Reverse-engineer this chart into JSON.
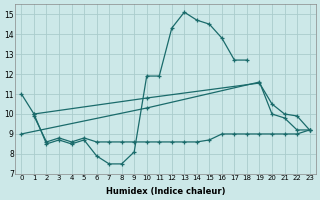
{
  "xlabel": "Humidex (Indice chaleur)",
  "bg_color": "#cce8e8",
  "grid_color": "#aacccc",
  "line_color": "#1a6b6b",
  "xlim": [
    -0.5,
    23.5
  ],
  "ylim": [
    7,
    15.5
  ],
  "xticks": [
    0,
    1,
    2,
    3,
    4,
    5,
    6,
    7,
    8,
    9,
    10,
    11,
    12,
    13,
    14,
    15,
    16,
    17,
    18,
    19,
    20,
    21,
    22,
    23
  ],
  "yticks": [
    7,
    8,
    9,
    10,
    11,
    12,
    13,
    14,
    15
  ],
  "s1_x": [
    0,
    1,
    2,
    3,
    4,
    5,
    6,
    7,
    8,
    9,
    10,
    11,
    12,
    13,
    14,
    15,
    16,
    17,
    18
  ],
  "s1_y": [
    11.0,
    10.0,
    8.5,
    8.7,
    8.5,
    8.7,
    7.9,
    7.5,
    7.5,
    8.1,
    11.9,
    11.9,
    14.3,
    15.1,
    14.7,
    14.5,
    13.8,
    12.7,
    12.7
  ],
  "s2_x": [
    0,
    10,
    19,
    20,
    21,
    22,
    23
  ],
  "s2_y": [
    9.0,
    10.3,
    11.6,
    10.0,
    9.8,
    9.2,
    9.2
  ],
  "s3_x": [
    1,
    10,
    19,
    20,
    21,
    22,
    23
  ],
  "s3_y": [
    10.0,
    10.8,
    11.55,
    10.5,
    10.0,
    9.9,
    9.2
  ],
  "s4_x": [
    1,
    2,
    3,
    4,
    5,
    6,
    7,
    8,
    9,
    10,
    11,
    12,
    13,
    14,
    15,
    16,
    17,
    18,
    19,
    20,
    21,
    22,
    23
  ],
  "s4_y": [
    9.9,
    8.6,
    8.8,
    8.6,
    8.8,
    8.6,
    8.6,
    8.6,
    8.6,
    8.6,
    8.6,
    8.6,
    8.6,
    8.6,
    8.7,
    9.0,
    9.0,
    9.0,
    9.0,
    9.0,
    9.0,
    9.0,
    9.2
  ]
}
